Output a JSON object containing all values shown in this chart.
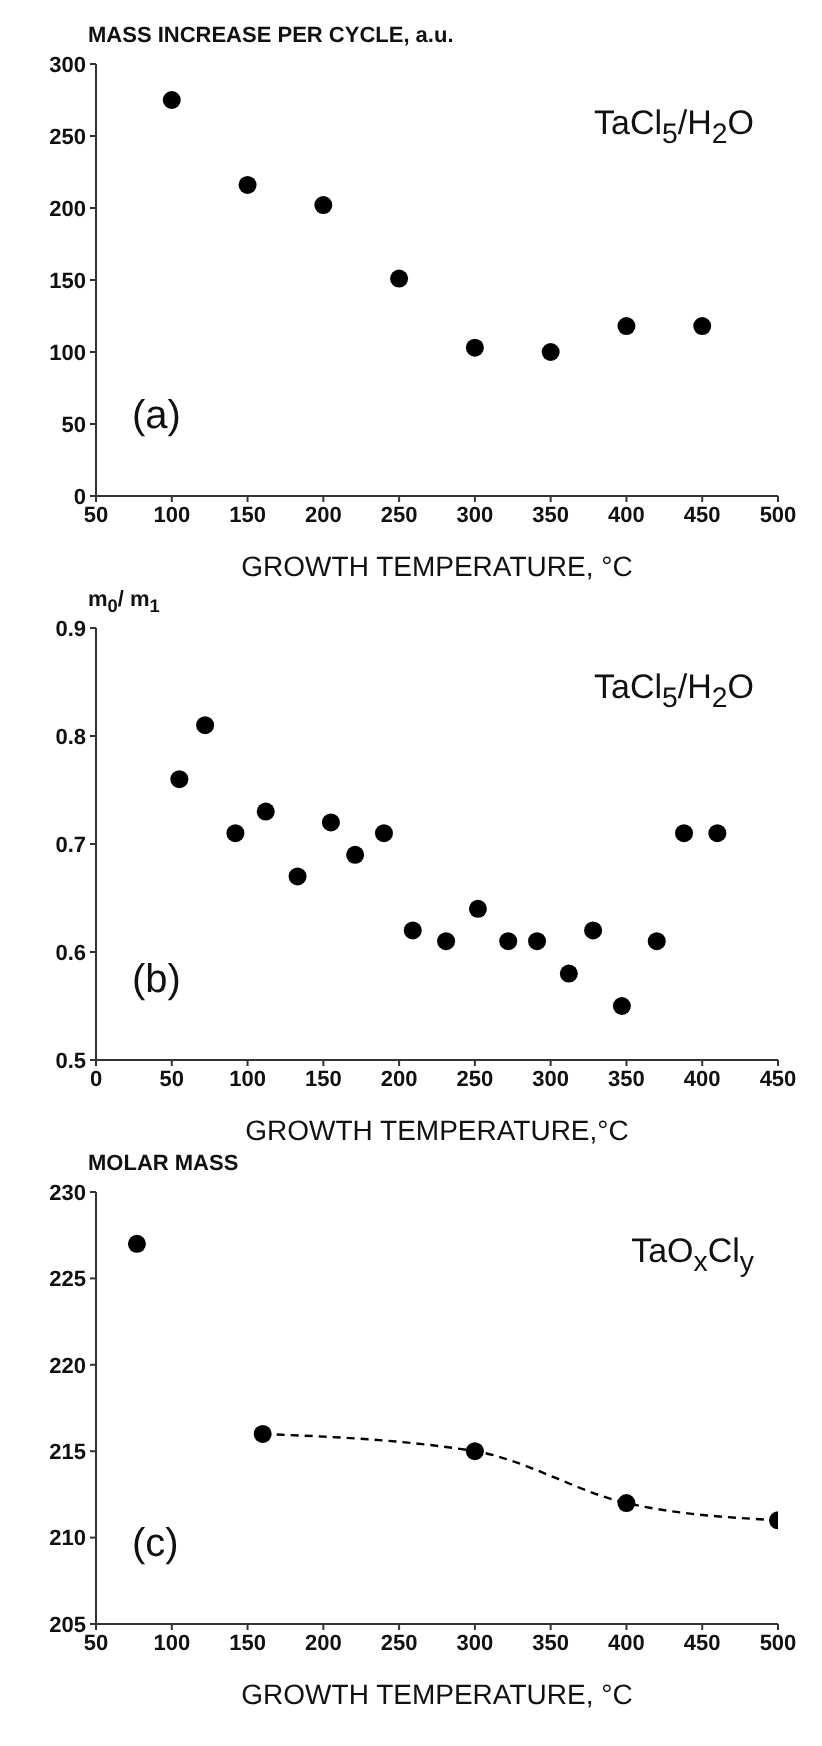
{
  "chart_data": [
    {
      "type": "scatter",
      "ylabel": "MASS INCREASE PER CYCLE, a.u.",
      "xlabel": "GROWTH TEMPERATURE, °C",
      "annotations": [
        "TaCl$_{5}$/H$_{2}$O",
        "(a)"
      ],
      "xlim": [
        50,
        500
      ],
      "xticks": [
        50,
        100,
        150,
        200,
        250,
        300,
        350,
        400,
        450,
        500
      ],
      "ylim": [
        0,
        300
      ],
      "yticks": [
        0,
        50,
        100,
        150,
        200,
        250,
        300
      ],
      "grid": false,
      "legend": false,
      "marker": "circle",
      "series": [
        {
          "color": "#000000",
          "x": [
            100,
            150,
            200,
            250,
            300,
            350,
            400,
            450
          ],
          "values": [
            275,
            216,
            202,
            151,
            103,
            100,
            118,
            118
          ]
        }
      ]
    },
    {
      "type": "scatter",
      "ylabel": "m$_{0}$/ m$_{1}$",
      "xlabel": "GROWTH TEMPERATURE,°C",
      "annotations": [
        "TaCl$_{5}$/H$_{2}$O",
        "(b)"
      ],
      "xlim": [
        0,
        450
      ],
      "xticks": [
        0,
        50,
        100,
        150,
        200,
        250,
        300,
        350,
        400,
        450
      ],
      "ylim": [
        0.5,
        0.9
      ],
      "yticks": [
        0.5,
        0.6,
        0.7,
        0.8,
        0.9
      ],
      "grid": false,
      "legend": false,
      "marker": "circle",
      "series": [
        {
          "color": "#000000",
          "x": [
            55,
            72,
            92,
            112,
            133,
            155,
            171,
            190,
            209,
            231,
            252,
            272,
            291,
            312,
            328,
            347,
            370,
            388,
            410
          ],
          "values": [
            0.76,
            0.81,
            0.71,
            0.73,
            0.67,
            0.72,
            0.69,
            0.71,
            0.62,
            0.61,
            0.64,
            0.61,
            0.61,
            0.58,
            0.62,
            0.55,
            0.61,
            0.71,
            0.71
          ]
        }
      ]
    },
    {
      "type": "scatter",
      "ylabel": "MOLAR MASS",
      "xlabel": "GROWTH TEMPERATURE, °C",
      "annotations": [
        "TaO$_{x}$Cl$_{y}$",
        "(c)"
      ],
      "xlim": [
        50,
        500
      ],
      "xticks": [
        50,
        100,
        150,
        200,
        250,
        300,
        350,
        400,
        450,
        500
      ],
      "ylim": [
        205,
        230
      ],
      "yticks": [
        205,
        210,
        215,
        220,
        225,
        230
      ],
      "grid": false,
      "legend": false,
      "marker": "circle",
      "series": [
        {
          "color": "#000000",
          "x": [
            77,
            160,
            300,
            400,
            500
          ],
          "values": [
            227,
            216,
            215,
            212,
            211
          ]
        },
        {
          "type": "line",
          "color": "#000000",
          "line_style": "dashed",
          "marker": "none",
          "x": [
            160,
            300,
            400,
            500
          ],
          "values": [
            216,
            215,
            212,
            211
          ]
        }
      ]
    }
  ]
}
